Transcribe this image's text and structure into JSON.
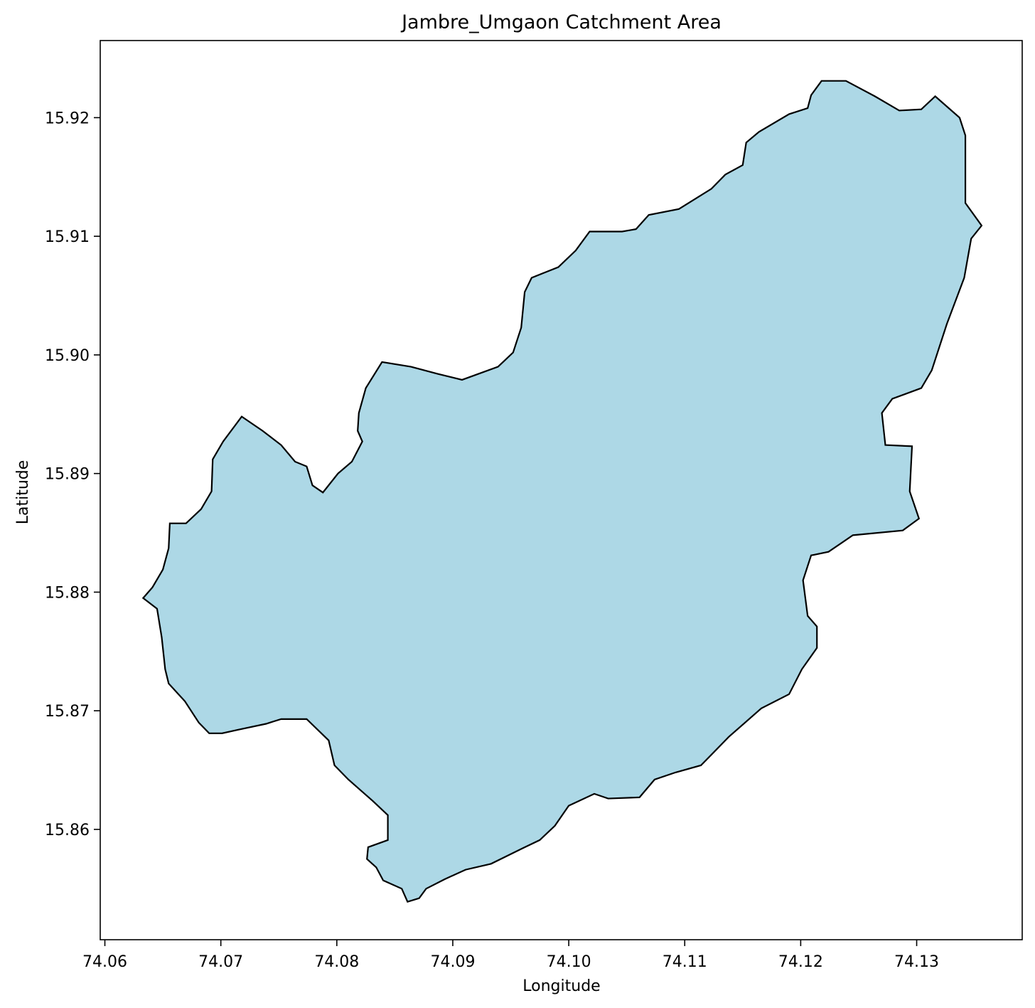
{
  "chart_data": {
    "type": "map",
    "title": "Jambre_Umgaon Catchment Area",
    "xlabel": "Longitude",
    "ylabel": "Latitude",
    "fill": "#add8e6",
    "edgecolor": "#000000",
    "xlim": [
      74.0596,
      74.1391
    ],
    "ylim": [
      15.8507,
      15.9265
    ],
    "xticks": [
      74.06,
      74.07,
      74.08,
      74.09,
      {
        "value": 74.1,
        "label": "74.10"
      },
      74.11,
      74.12,
      74.13
    ],
    "yticks": [
      15.86,
      15.87,
      15.88,
      15.89,
      {
        "value": 15.9,
        "label": "15.90"
      },
      15.91,
      15.92
    ],
    "x": [
      74.1218,
      74.1239,
      74.1264,
      74.1285,
      74.1304,
      74.1316,
      74.1337,
      74.1342,
      74.1342,
      74.1356,
      74.1347,
      74.1341,
      74.1326,
      74.1313,
      74.1304,
      74.1279,
      74.127,
      74.1273,
      74.1296,
      74.1294,
      74.1302,
      74.1288,
      74.1245,
      74.1224,
      74.1209,
      74.1202,
      74.1206,
      74.1214,
      74.1214,
      74.1201,
      74.119,
      74.1166,
      74.1138,
      74.1114,
      74.1092,
      74.1074,
      74.1061,
      74.1034,
      74.1022,
      74.1,
      74.0988,
      74.0975,
      74.096,
      74.0933,
      74.0911,
      74.0893,
      74.0877,
      74.0871,
      74.0861,
      74.0856,
      74.084,
      74.0834,
      74.0826,
      74.0827,
      74.0844,
      74.0844,
      74.0831,
      74.081,
      74.0798,
      74.0793,
      74.0774,
      74.0752,
      74.0739,
      74.0715,
      74.0701,
      74.069,
      74.0681,
      74.0669,
      74.0655,
      74.0652,
      74.0649,
      74.0645,
      74.0633,
      74.0641,
      74.065,
      74.0655,
      74.0656,
      74.067,
      74.0683,
      74.0692,
      74.0693,
      74.0702,
      74.0718,
      74.0736,
      74.0752,
      74.0764,
      74.0774,
      74.0779,
      74.0788,
      74.0801,
      74.0813,
      74.0822,
      74.0818,
      74.0819,
      74.0825,
      74.0839,
      74.0864,
      74.0887,
      74.0908,
      74.0939,
      74.0952,
      74.0959,
      74.0962,
      74.0968,
      74.0991,
      74.1006,
      74.1018,
      74.1046,
      74.1058,
      74.1069,
      74.1095,
      74.1123,
      74.1135,
      74.115,
      74.1153,
      74.1164,
      74.119,
      74.1206,
      74.1209
    ],
    "y": [
      15.9231,
      15.9231,
      15.9218,
      15.9206,
      15.9207,
      15.9218,
      15.92,
      15.9185,
      15.9128,
      15.9109,
      15.9098,
      15.9065,
      15.9026,
      15.8987,
      15.8972,
      15.8963,
      15.8951,
      15.8924,
      15.8923,
      15.8885,
      15.8862,
      15.8852,
      15.8848,
      15.8834,
      15.8831,
      15.881,
      15.878,
      15.8771,
      15.8753,
      15.8735,
      15.8714,
      15.8702,
      15.8678,
      15.8654,
      15.8648,
      15.8642,
      15.8627,
      15.8626,
      15.863,
      15.862,
      15.8603,
      15.8591,
      15.8584,
      15.8571,
      15.8566,
      15.8558,
      15.855,
      15.8542,
      15.8539,
      15.855,
      15.8557,
      15.8568,
      15.8575,
      15.8585,
      15.8591,
      15.8612,
      15.8624,
      15.8642,
      15.8654,
      15.8675,
      15.8693,
      15.8693,
      15.8689,
      15.8684,
      15.8681,
      15.8681,
      15.869,
      15.8708,
      15.8723,
      15.8735,
      15.8762,
      15.8786,
      15.8795,
      15.8804,
      15.8819,
      15.8837,
      15.8858,
      15.8858,
      15.887,
      15.8885,
      15.8912,
      15.8927,
      15.8948,
      15.8936,
      15.8924,
      15.891,
      15.8906,
      15.889,
      15.8884,
      15.89,
      15.891,
      15.8927,
      15.8936,
      15.8951,
      15.8972,
      15.8994,
      15.899,
      15.8984,
      15.8979,
      15.899,
      15.9002,
      15.9023,
      15.9053,
      15.9065,
      15.9074,
      15.9088,
      15.9104,
      15.9104,
      15.9106,
      15.9118,
      15.9123,
      15.914,
      15.9152,
      15.916,
      15.9179,
      15.9188,
      15.9203,
      15.9208,
      15.9219
    ]
  }
}
